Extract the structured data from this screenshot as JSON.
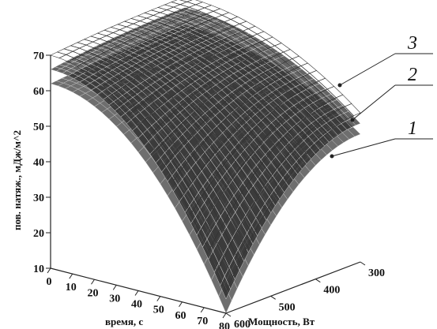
{
  "chart_data": {
    "type": "surface3d",
    "title": "",
    "zlabel": "пов. натяж., мДж/м^2",
    "xlabel": "время, с",
    "ylabel": "Мощность, Вт",
    "x_ticks": [
      0,
      10,
      20,
      30,
      40,
      50,
      60,
      70,
      80
    ],
    "y_ticks": [
      600,
      500,
      400,
      300
    ],
    "z_ticks": [
      10,
      20,
      30,
      40,
      50,
      60,
      70
    ],
    "xlim": [
      0,
      80
    ],
    "ylim": [
      600,
      300
    ],
    "zlim": [
      10,
      70
    ],
    "series": [
      {
        "name": "1",
        "style": "solid-gray",
        "corner_values": {
          "t0_p600": 62,
          "t0_p300": 64,
          "t80_p600": 10,
          "t80_p300": 46
        }
      },
      {
        "name": "2",
        "style": "fine-mesh",
        "corner_values": {
          "t0_p600": 66,
          "t0_p300": 69,
          "t80_p600": 14,
          "t80_p300": 49
        }
      },
      {
        "name": "3",
        "style": "light-mesh",
        "corner_values": {
          "t0_p600": 70,
          "t0_p300": 72,
          "t80_p600": 16,
          "t80_p300": 52
        }
      }
    ],
    "callouts": [
      "3",
      "2",
      "1"
    ]
  }
}
